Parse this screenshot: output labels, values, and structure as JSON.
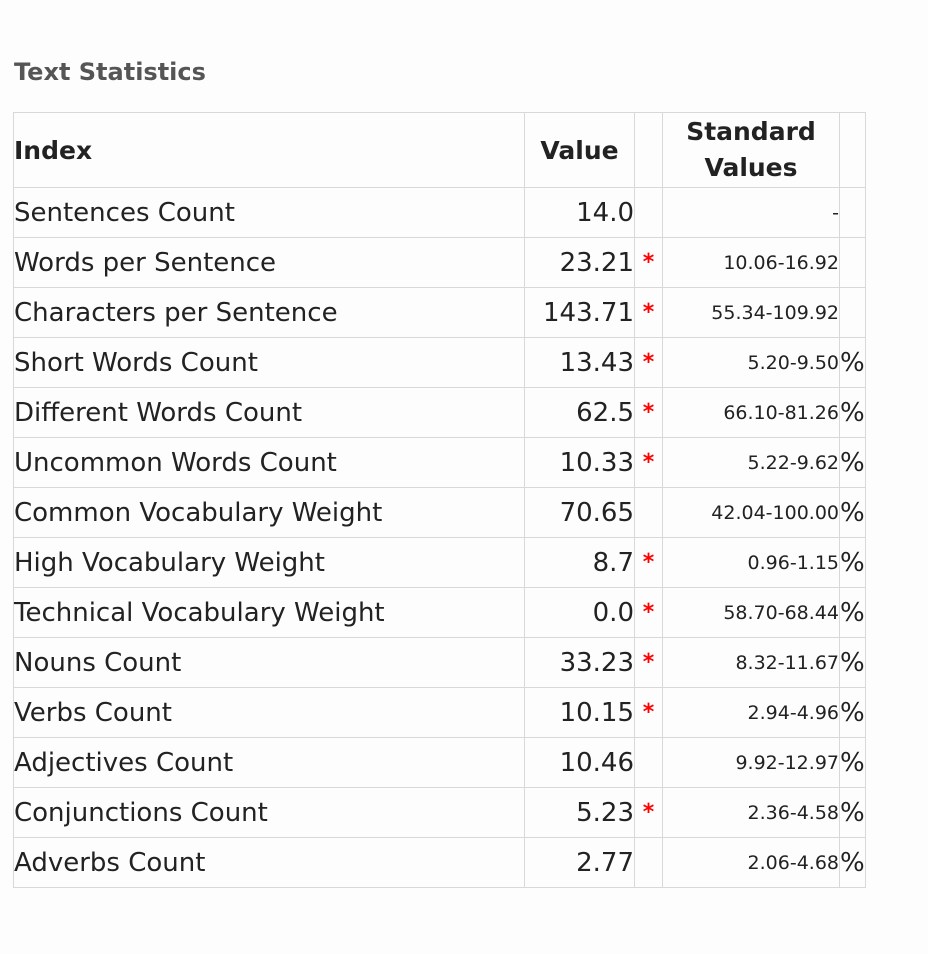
{
  "title": "Text Statistics",
  "table": {
    "headers": {
      "index": "Index",
      "value": "Value",
      "standard_line1": "Standard",
      "standard_line2": "Values"
    },
    "rows": [
      {
        "index": "Sentences Count",
        "value": "14.0",
        "flag": "",
        "standard": "-",
        "unit": ""
      },
      {
        "index": "Words per Sentence",
        "value": "23.21",
        "flag": "*",
        "standard": "10.06-16.92",
        "unit": ""
      },
      {
        "index": "Characters per Sentence",
        "value": "143.71",
        "flag": "*",
        "standard": "55.34-109.92",
        "unit": ""
      },
      {
        "index": "Short Words Count",
        "value": "13.43",
        "flag": "*",
        "standard": "5.20-9.50",
        "unit": "%"
      },
      {
        "index": "Different Words Count",
        "value": "62.5",
        "flag": "*",
        "standard": "66.10-81.26",
        "unit": "%"
      },
      {
        "index": "Uncommon Words Count",
        "value": "10.33",
        "flag": "*",
        "standard": "5.22-9.62",
        "unit": "%"
      },
      {
        "index": "Common Vocabulary Weight",
        "value": "70.65",
        "flag": "",
        "standard": "42.04-100.00",
        "unit": "%"
      },
      {
        "index": "High Vocabulary Weight",
        "value": "8.7",
        "flag": "*",
        "standard": "0.96-1.15",
        "unit": "%"
      },
      {
        "index": "Technical Vocabulary Weight",
        "value": "0.0",
        "flag": "*",
        "standard": "58.70-68.44",
        "unit": "%"
      },
      {
        "index": "Nouns Count",
        "value": "33.23",
        "flag": "*",
        "standard": "8.32-11.67",
        "unit": "%"
      },
      {
        "index": "Verbs Count",
        "value": "10.15",
        "flag": "*",
        "standard": "2.94-4.96",
        "unit": "%"
      },
      {
        "index": "Adjectives Count",
        "value": "10.46",
        "flag": "",
        "standard": "9.92-12.97",
        "unit": "%"
      },
      {
        "index": "Conjunctions Count",
        "value": "5.23",
        "flag": "*",
        "standard": "2.36-4.58",
        "unit": "%"
      },
      {
        "index": "Adverbs Count",
        "value": "2.77",
        "flag": "",
        "standard": "2.06-4.68",
        "unit": "%"
      }
    ]
  },
  "colors": {
    "flag": "#ff0000",
    "title": "#555555",
    "border": "#d8d8d8"
  }
}
